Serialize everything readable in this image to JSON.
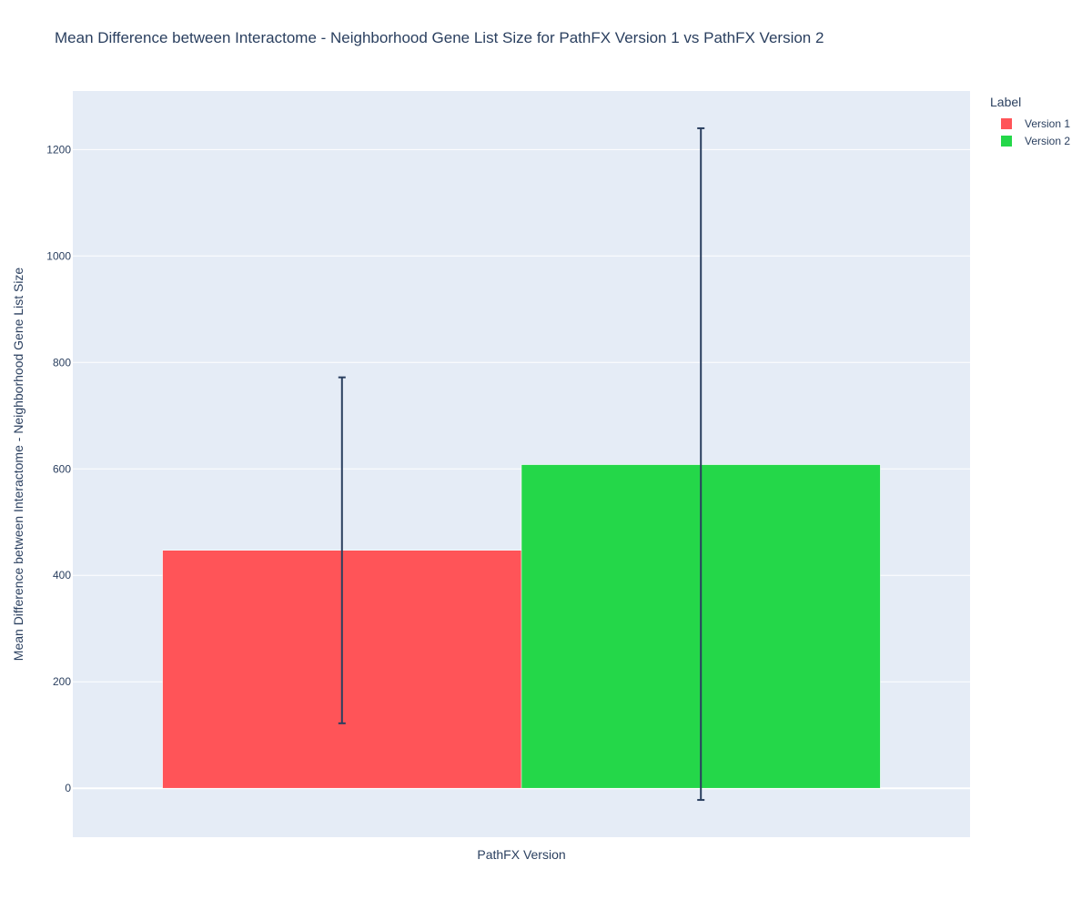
{
  "chart_data": {
    "type": "bar",
    "title": "Mean Difference between Interactome - Neighborhood Gene List Size for PathFX Version 1 vs PathFX Version 2",
    "xlabel": "PathFX Version",
    "ylabel": "Mean Difference between Interactome - Neighborhood Gene List Size",
    "legend_title": "Label",
    "legend_position": "top-right",
    "grid": true,
    "ylim": [
      -92,
      1310
    ],
    "yticks": [
      0,
      200,
      400,
      600,
      800,
      1000,
      1200
    ],
    "series": [
      {
        "name": "Version 1",
        "value": 447,
        "error_low": 122,
        "error_high": 772,
        "color": "#ff5458"
      },
      {
        "name": "Version 2",
        "value": 608,
        "error_low": -22,
        "error_high": 1240,
        "color": "#24d749"
      }
    ],
    "colors": {
      "plot_background": "#e5ecf6",
      "grid": "#ffffff",
      "error_bar": "#2a3f5f",
      "text": "#2a3f5f"
    }
  }
}
